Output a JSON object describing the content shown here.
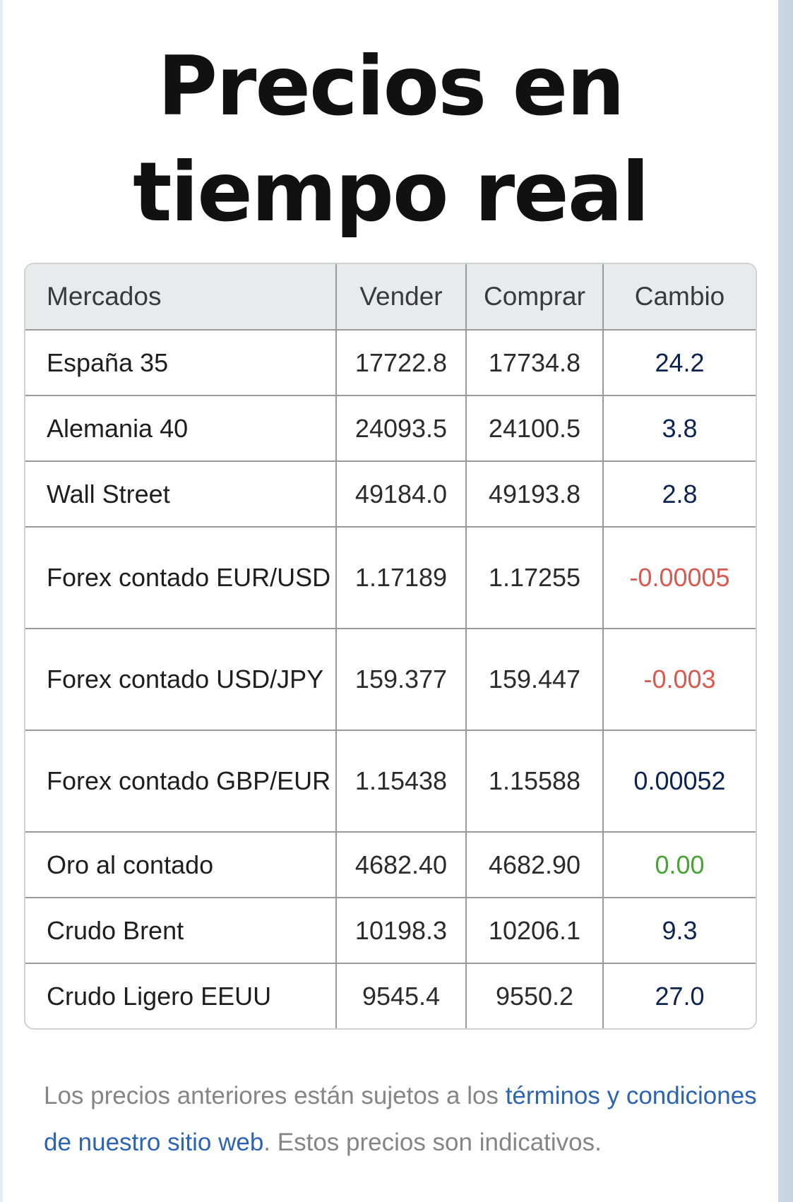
{
  "title": {
    "line1": "Precios en",
    "line2": "tiempo real"
  },
  "table": {
    "headers": {
      "market": "Mercados",
      "sell": "Vender",
      "buy": "Comprar",
      "change": "Cambio"
    },
    "rows": [
      {
        "market": "España 35",
        "sell": "17722.8",
        "buy": "17734.8",
        "change": "24.2"
      },
      {
        "market": "Alemania 40",
        "sell": "24093.5",
        "buy": "24100.5",
        "change": "3.8"
      },
      {
        "market": "Wall Street",
        "sell": "49184.0",
        "buy": "49193.8",
        "change": "2.8"
      },
      {
        "market": "Forex contado EUR/USD",
        "sell": "1.17189",
        "buy": "1.17255",
        "change": "-0.00005"
      },
      {
        "market": "Forex contado USD/JPY",
        "sell": "159.377",
        "buy": "159.447",
        "change": "-0.003"
      },
      {
        "market": "Forex contado GBP/EUR",
        "sell": "1.15438",
        "buy": "1.15588",
        "change": "0.00052"
      },
      {
        "market": "Oro al contado",
        "sell": "4682.40",
        "buy": "4682.90",
        "change": "0.00"
      },
      {
        "market": "Crudo Brent",
        "sell": "10198.3",
        "buy": "10206.1",
        "change": "9.3"
      },
      {
        "market": "Crudo Ligero EEUU",
        "sell": "9545.4",
        "buy": "9550.2",
        "change": "27.0"
      }
    ]
  },
  "footer": {
    "text_before": "Los precios anteriores están sujetos a los ",
    "link": "términos y condiciones de nuestro sitio web",
    "text_after": ". Estos precios son indicativos."
  },
  "colors": {
    "positive": "#0d2350",
    "negative": "#db5850",
    "zero": "#47a332",
    "link": "#2c64b4",
    "header_bg": "#e9eaec"
  }
}
